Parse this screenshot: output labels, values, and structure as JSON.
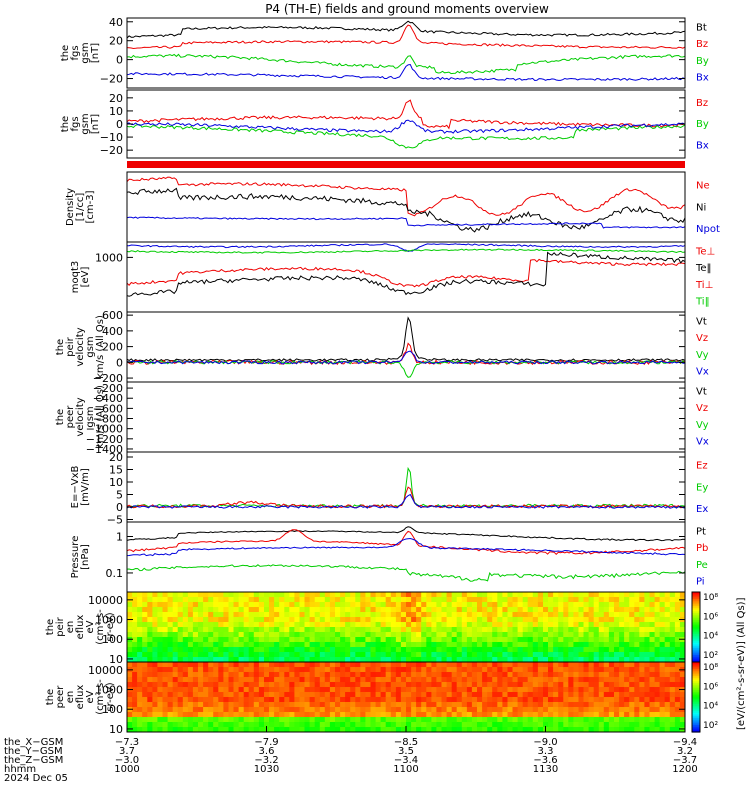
{
  "title": "P4 (TH-E) fields and ground moments overview",
  "colors": {
    "black": "#000000",
    "red": "#ee0000",
    "green": "#00cc00",
    "blue": "#0000dd"
  },
  "panels": [
    {
      "id": "fgs-gsm",
      "ylabel": [
        "the",
        "fgs",
        "gsm",
        "[nT]"
      ],
      "ticks": [
        {
          "v": 40,
          "t": "40"
        },
        {
          "v": 20,
          "t": "20"
        },
        {
          "v": 0,
          "t": "0"
        },
        {
          "v": -20,
          "t": "−20"
        }
      ],
      "ylim": [
        -30,
        44
      ],
      "log": false,
      "legend": [
        {
          "t": "Bt",
          "c": "black"
        },
        {
          "t": "Bz",
          "c": "red"
        },
        {
          "t": "By",
          "c": "green"
        },
        {
          "t": "Bx",
          "c": "blue"
        }
      ]
    },
    {
      "id": "fgs-gse",
      "ylabel": [
        "the",
        "fgs",
        "gsm",
        "[nT]"
      ],
      "ticks": [
        {
          "v": 20,
          "t": "20"
        },
        {
          "v": 10,
          "t": "10"
        },
        {
          "v": 0,
          "t": "0"
        },
        {
          "v": -10,
          "t": "−10"
        },
        {
          "v": -20,
          "t": "−20"
        }
      ],
      "ylim": [
        -26,
        26
      ],
      "log": false,
      "legend": [
        {
          "t": "Bz",
          "c": "red"
        },
        {
          "t": "By",
          "c": "green"
        },
        {
          "t": "Bx",
          "c": "blue"
        }
      ]
    },
    {
      "id": "density",
      "ylabel": [
        "Density",
        "[1/cc]",
        "[cm-3]"
      ],
      "ticks": [],
      "ylim": [
        0,
        1
      ],
      "log": false,
      "legend": [
        {
          "t": "Ne",
          "c": "red"
        },
        {
          "t": "Ni",
          "c": "black"
        },
        {
          "t": "Npot",
          "c": "blue"
        }
      ]
    },
    {
      "id": "temp",
      "ylabel": [
        "moqt3",
        "[eV]"
      ],
      "ticks": [
        {
          "v": 0.78,
          "t": "1000"
        }
      ],
      "ylim": [
        0,
        1
      ],
      "log": false,
      "legend": [
        {
          "t": "Te⊥",
          "c": "red"
        },
        {
          "t": "Te‖",
          "c": "black"
        },
        {
          "t": "Ti⊥",
          "c": "red"
        },
        {
          "t": "Ti‖",
          "c": "green"
        }
      ]
    },
    {
      "id": "peir-vel",
      "ylabel": [
        "the",
        "peir",
        "velocity",
        "gsm",
        "km/s (All Qs)"
      ],
      "ticks": [
        {
          "v": 600,
          "t": "600"
        },
        {
          "v": 400,
          "t": "400"
        },
        {
          "v": 200,
          "t": "200"
        },
        {
          "v": 0,
          "t": "0"
        },
        {
          "v": -200,
          "t": "−200"
        }
      ],
      "ylim": [
        -250,
        640
      ],
      "log": false,
      "legend": [
        {
          "t": "Vt",
          "c": "black"
        },
        {
          "t": "Vz",
          "c": "red"
        },
        {
          "t": "Vy",
          "c": "green"
        },
        {
          "t": "Vx",
          "c": "blue"
        }
      ]
    },
    {
      "id": "peer-vel",
      "ylabel": [
        "the",
        "peer",
        "velocity",
        "gsm",
        "km/s (All Qs)"
      ],
      "ticks": [
        {
          "v": -200,
          "t": "−200"
        },
        {
          "v": -400,
          "t": "−400"
        },
        {
          "v": -600,
          "t": "−600"
        },
        {
          "v": -800,
          "t": "−800"
        },
        {
          "v": -1000,
          "t": "−1000"
        },
        {
          "v": -1200,
          "t": "−1200"
        },
        {
          "v": -1400,
          "t": "−1400"
        }
      ],
      "ylim": [
        -1460,
        -80
      ],
      "log": false,
      "legend": [
        {
          "t": "Vt",
          "c": "black"
        },
        {
          "t": "Vz",
          "c": "red"
        },
        {
          "t": "Vy",
          "c": "green"
        },
        {
          "t": "Vx",
          "c": "blue"
        }
      ]
    },
    {
      "id": "efield",
      "ylabel": [
        "E=−VxB",
        "[mV/m]"
      ],
      "ticks": [
        {
          "v": 20,
          "t": "20"
        },
        {
          "v": 15,
          "t": "15"
        },
        {
          "v": 10,
          "t": "10"
        },
        {
          "v": 5,
          "t": "5"
        },
        {
          "v": 0,
          "t": "0"
        },
        {
          "v": -5,
          "t": "−5"
        }
      ],
      "ylim": [
        -6,
        22
      ],
      "log": false,
      "legend": [
        {
          "t": "Ez",
          "c": "red"
        },
        {
          "t": "Ey",
          "c": "green"
        },
        {
          "t": "Ex",
          "c": "blue"
        }
      ]
    },
    {
      "id": "pressure",
      "ylabel": [
        "Pressure",
        "[nPa]"
      ],
      "ticks": [
        {
          "v": 1,
          "t": "1"
        },
        {
          "v": 0.1,
          "t": "0.1"
        }
      ],
      "ylim": [
        0.03,
        2.5
      ],
      "log": true,
      "legend": [
        {
          "t": "Pt",
          "c": "black"
        },
        {
          "t": "Pb",
          "c": "red"
        },
        {
          "t": "Pe",
          "c": "green"
        },
        {
          "t": "Pi",
          "c": "blue"
        }
      ]
    },
    {
      "id": "peir-spec",
      "ylabel": [
        "the",
        "peir",
        "en",
        "eflux",
        "eV",
        "(cm²-s-",
        "sr-eV)"
      ],
      "ticks": [
        {
          "v": 10000,
          "t": "10000"
        },
        {
          "v": 1000,
          "t": "1000"
        },
        {
          "v": 100,
          "t": "100"
        },
        {
          "v": 10,
          "t": "10"
        }
      ],
      "ylim": [
        7,
        25000
      ],
      "log": true,
      "legend": []
    },
    {
      "id": "peer-spec",
      "ylabel": [
        "the",
        "peer",
        "en",
        "eflux",
        "eV",
        "(cm²-s-",
        "sr-eV)"
      ],
      "ticks": [
        {
          "v": 10000,
          "t": "10000"
        },
        {
          "v": 1000,
          "t": "1000"
        },
        {
          "v": 100,
          "t": "100"
        },
        {
          "v": 10,
          "t": "10"
        }
      ],
      "ylim": [
        7,
        25000
      ],
      "log": true,
      "legend": []
    }
  ],
  "colorbar": {
    "label": "[eV/(cm²-s-sr-eV)] (All Qs)]",
    "ticks_upper": [
      "10⁸",
      "10⁶",
      "10⁴",
      "10²"
    ],
    "ticks_lower": [
      "10⁸",
      "10⁶",
      "10⁴",
      "10²"
    ]
  },
  "xaxis": {
    "rows": [
      {
        "label": "the_X−GSM",
        "values": [
          "−7.3",
          "−7.9",
          "−8.5",
          "−9.0",
          "−9.4"
        ]
      },
      {
        "label": "the_Y−GSM",
        "values": [
          "3.7",
          "3.6",
          "3.5",
          "3.3",
          "3.2"
        ]
      },
      {
        "label": "the_Z−GSM",
        "values": [
          "−3.0",
          "−3.2",
          "−3.4",
          "−3.6",
          "−3.7"
        ]
      },
      {
        "label": "hhmm",
        "values": [
          "1000",
          "1030",
          "1100",
          "1130",
          "1200"
        ]
      }
    ],
    "date": "2024 Dec 05"
  },
  "chart_data": {
    "type": "line",
    "title": "P4 (TH-E) fields and ground moments overview",
    "x": [
      "1000",
      "1030",
      "1100",
      "1130",
      "1200"
    ],
    "xlabel": "hhmm",
    "series": [
      {
        "name": "Bt",
        "panel": "fgs-gsm",
        "values": [
          28,
          30,
          38,
          27,
          25
        ]
      },
      {
        "name": "Bz",
        "panel": "fgs-gsm",
        "values": [
          12,
          14,
          20,
          12,
          10
        ]
      },
      {
        "name": "By",
        "panel": "fgs-gsm",
        "values": [
          -5,
          0,
          10,
          -5,
          0
        ]
      },
      {
        "name": "Bx",
        "panel": "fgs-gsm",
        "values": [
          -20,
          -18,
          -10,
          -22,
          -20
        ]
      },
      {
        "name": "Vt",
        "panel": "peir-vel",
        "values": [
          20,
          20,
          550,
          20,
          20
        ]
      },
      {
        "name": "Ez",
        "panel": "efield",
        "values": [
          0,
          0,
          10,
          0,
          0
        ]
      },
      {
        "name": "Ey",
        "panel": "efield",
        "values": [
          0,
          0,
          18,
          1,
          0
        ]
      }
    ]
  }
}
